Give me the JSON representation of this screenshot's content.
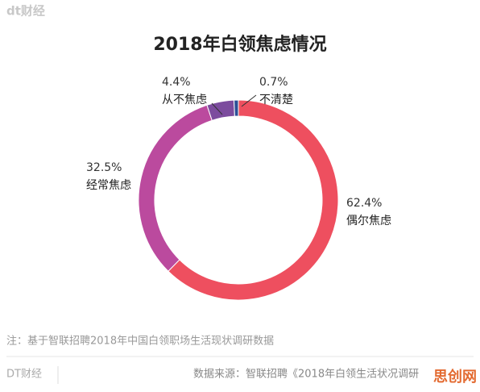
{
  "header": {
    "logo": "dt财经"
  },
  "chart_data": {
    "type": "pie",
    "donut": true,
    "title": "2018年白领焦虑情况",
    "categories": [
      "偶尔焦虑",
      "经常焦虑",
      "从不焦虑",
      "不清楚"
    ],
    "values": [
      62.4,
      32.5,
      4.4,
      0.7
    ],
    "value_labels": [
      "62.4%",
      "32.5%",
      "4.4%",
      "0.7%"
    ],
    "colors": [
      "#ee4f5f",
      "#bb4a9e",
      "#7c4c9e",
      "#2d4f96"
    ]
  },
  "footer": {
    "note": "注：基于智联招聘2018年中国白领职场生活现状调研数据",
    "brand": "DT财经",
    "source": "数据来源：智联招聘《2018年白领生活状况调研",
    "watermark": "思创网"
  }
}
